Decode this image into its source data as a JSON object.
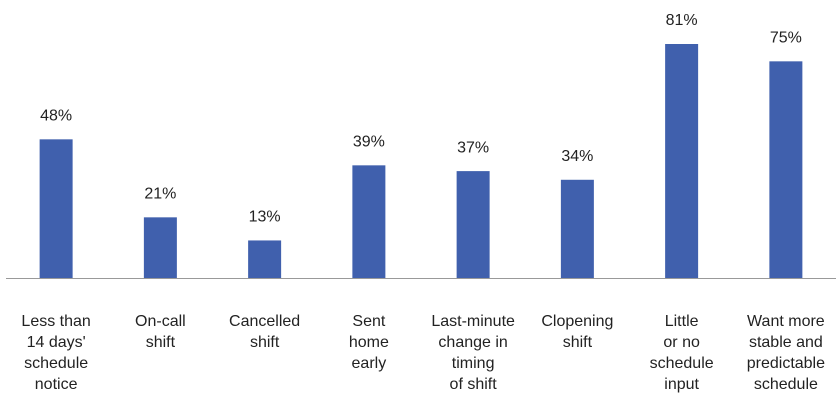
{
  "chart_data": {
    "type": "bar",
    "categories": [
      [
        "Less than",
        "14 days'",
        "schedule",
        "notice"
      ],
      [
        "On-call",
        "shift"
      ],
      [
        "Cancelled",
        "shift"
      ],
      [
        "Sent",
        "home",
        "early"
      ],
      [
        "Last-minute",
        "change in",
        "timing",
        "of shift"
      ],
      [
        "Clopening",
        "shift"
      ],
      [
        "Little",
        "or no",
        "schedule",
        "input"
      ],
      [
        "Want more",
        "stable and",
        "predictable",
        "schedule"
      ]
    ],
    "values": [
      48,
      21,
      13,
      39,
      37,
      34,
      81,
      75
    ],
    "value_labels": [
      "48%",
      "21%",
      "13%",
      "39%",
      "37%",
      "34%",
      "81%",
      "75%"
    ],
    "color": "#4060ad",
    "ylim": [
      0,
      90
    ]
  }
}
